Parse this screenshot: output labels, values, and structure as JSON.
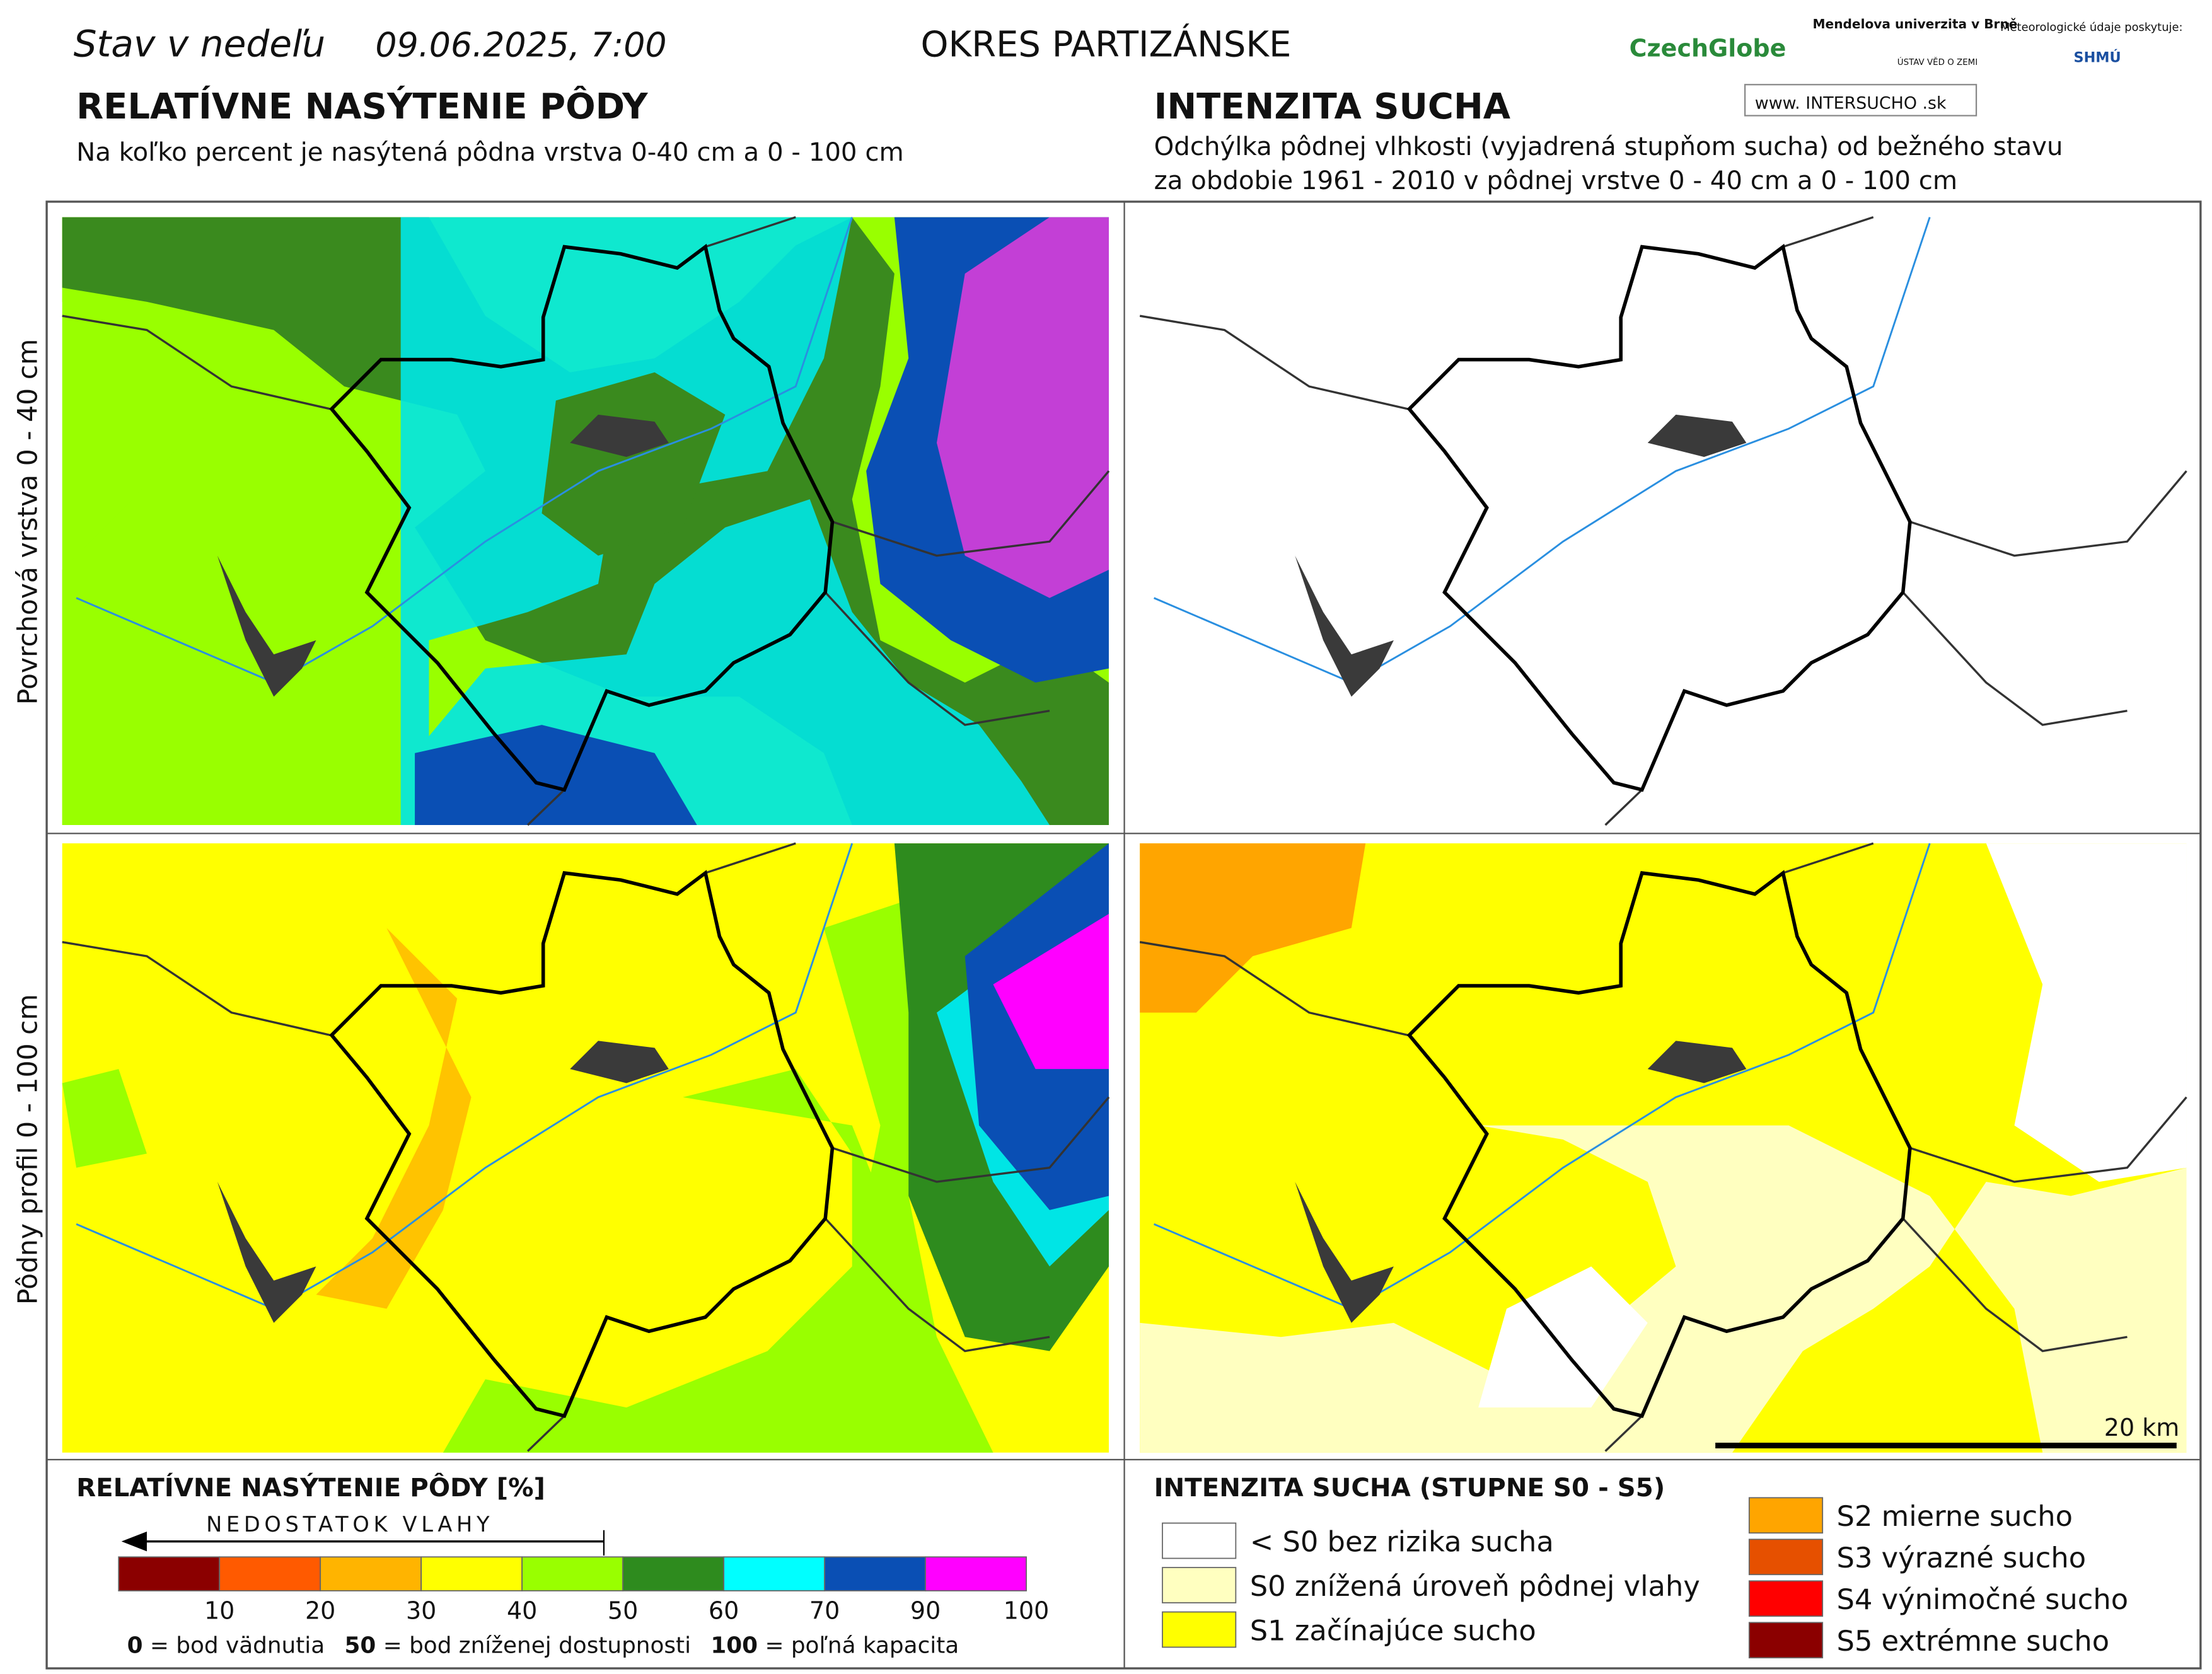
{
  "header": {
    "date_prefix": "Stav v nedeľu",
    "date": "09.06.2025, 7:00",
    "region": "OKRES  PARTIZÁNSKE",
    "logos": [
      "CzechGlobe",
      "Mendelova univerzita v Brně",
      "ÚSTAV VĚD O ZEMI",
      "Meteorologické údaje poskytuje:",
      "SHMÚ",
      "www. INTERSUCHO .sk"
    ]
  },
  "left_panel": {
    "title": "RELATÍVNE NASÝTENIE PÔDY",
    "subtitle": "Na koľko percent je nasýtená pôdna vrstva 0-40 cm a 0 - 100 cm"
  },
  "right_panel": {
    "title": "INTENZITA SUCHA",
    "subtitle_lines": [
      "Odchýlka pôdnej vlhkosti (vyjadrená stupňom sucha) od bežného stavu",
      "za obdobie 1961 - 2010 v pôdnej vrstve 0 - 40 cm a 0 - 100 cm"
    ]
  },
  "rows": [
    "Povrchová vrstva 0 - 40 cm",
    "Pôdny profil 0 - 100 cm"
  ],
  "scale_bar": "20 km",
  "legend_saturation": {
    "title": "RELATÍVNE NASÝTENIE PÔDY [%]",
    "arrow_label": "NEDOSTATOK VLAHY",
    "classes": [
      {
        "color": "#8b0000",
        "upper": 10
      },
      {
        "color": "#ff5a00",
        "upper": 20
      },
      {
        "color": "#ffb400",
        "upper": 30
      },
      {
        "color": "#ffff00",
        "upper": 40
      },
      {
        "color": "#99ff00",
        "upper": 50
      },
      {
        "color": "#2e8b1e",
        "upper": 60
      },
      {
        "color": "#00ffff",
        "upper": 70
      },
      {
        "color": "#0a4fb4",
        "upper": 90
      },
      {
        "color": "#ff00ff",
        "upper": 100
      }
    ],
    "notes": [
      {
        "key": "0",
        "text": " = bod vädnutia"
      },
      {
        "key": "50",
        "text": " = bod zníženej dostupnosti"
      },
      {
        "key": "100",
        "text": " = poľná kapacita"
      }
    ]
  },
  "legend_drought": {
    "title": "INTENZITA SUCHA (STUPNE S0 - S5)",
    "classes": [
      {
        "color": "#ffffff",
        "label": "< S0 bez rizika sucha"
      },
      {
        "color": "#ffffc0",
        "label": "S0 znížená úroveň pôdnej vlahy"
      },
      {
        "color": "#ffff00",
        "label": "S1 začínajúce sucho"
      },
      {
        "color": "#ffa500",
        "label": "S2 mierne sucho"
      },
      {
        "color": "#e65000",
        "label": "S3 výrazné sucho"
      },
      {
        "color": "#ff0000",
        "label": "S4 výnimočné sucho"
      },
      {
        "color": "#8b0000",
        "label": "S5 extrémne sucho"
      }
    ]
  }
}
